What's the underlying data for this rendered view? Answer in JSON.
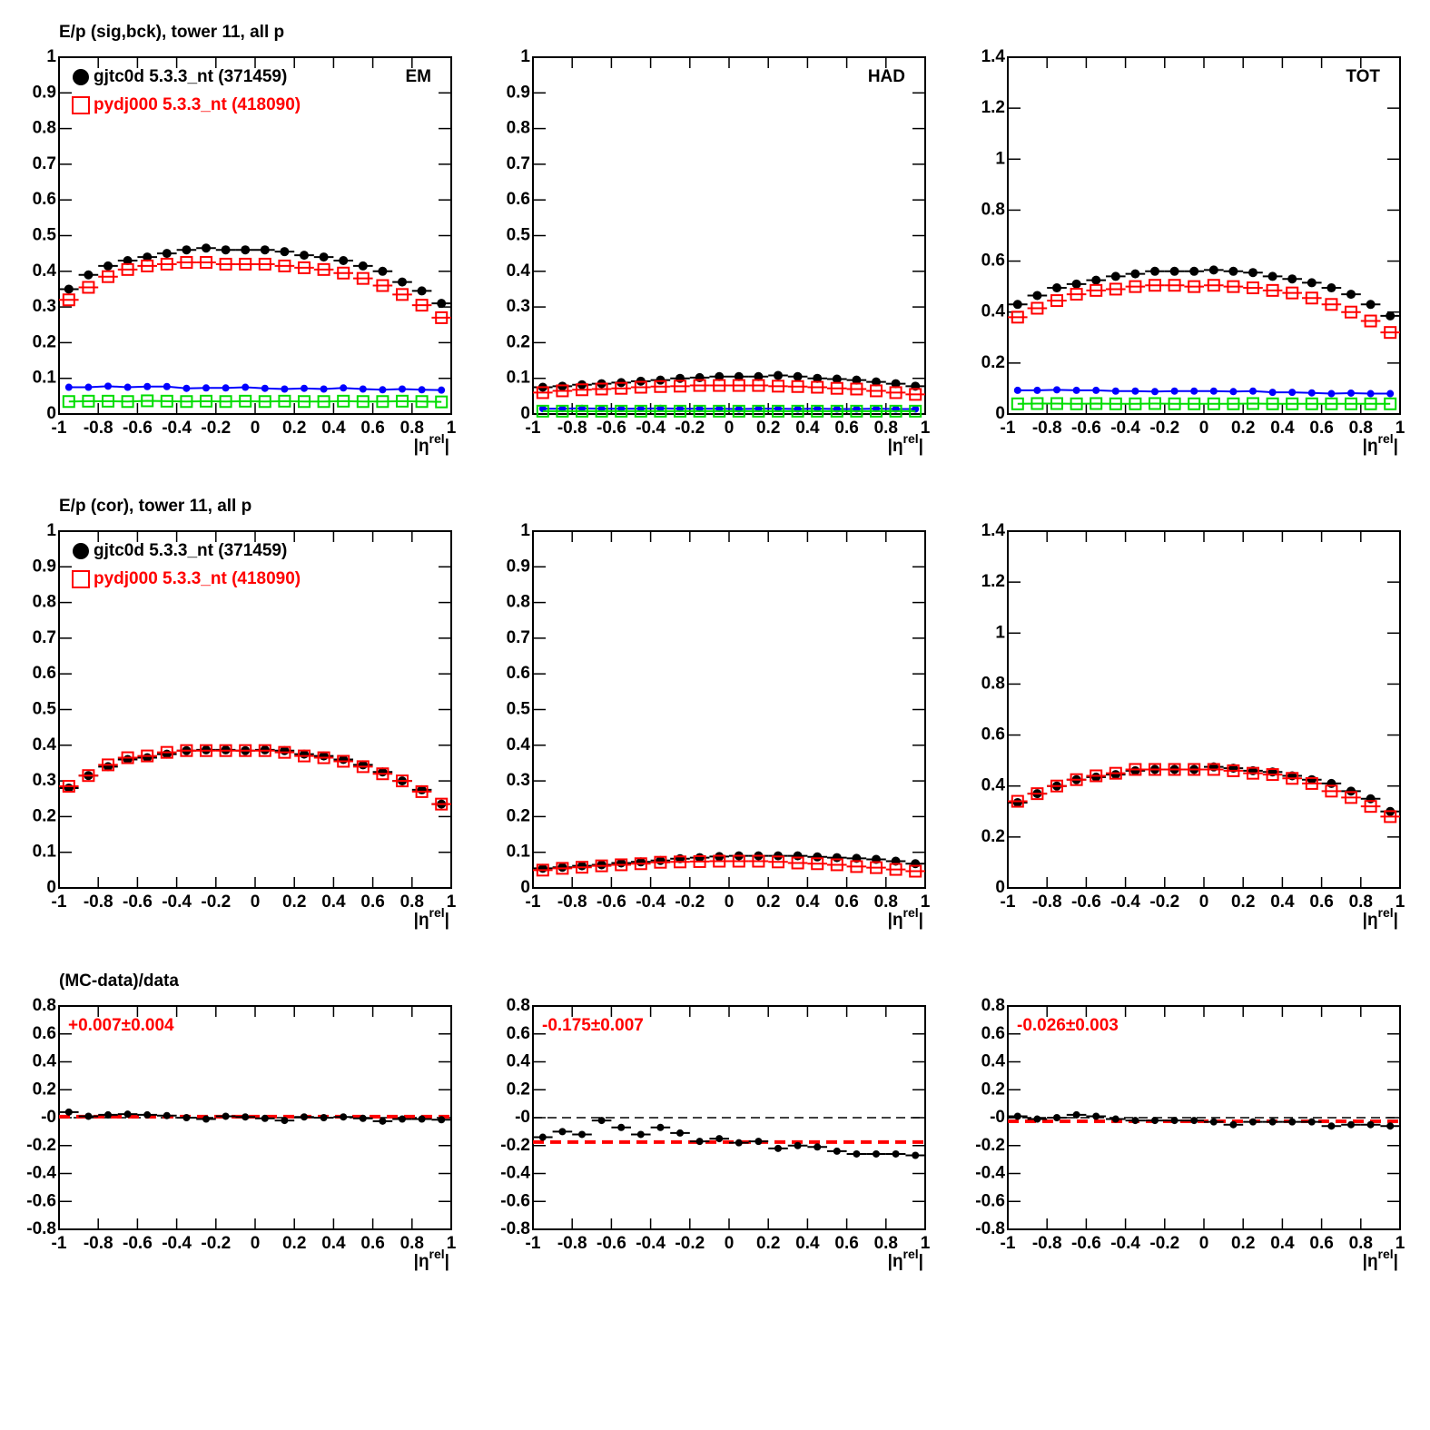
{
  "chart_data": [
    {
      "type": "scatter",
      "title": "E/p (sig,bck), tower 11, all p",
      "corner_label": "EM",
      "x": [
        -0.95,
        -0.85,
        -0.75,
        -0.65,
        -0.55,
        -0.45,
        -0.35,
        -0.25,
        -0.15,
        -0.05,
        0.05,
        0.15,
        0.25,
        0.35,
        0.45,
        0.55,
        0.65,
        0.75,
        0.85,
        0.95
      ],
      "x_label": [
        "|η",
        "rel",
        "|"
      ],
      "xlim": [
        -1,
        1
      ],
      "xticks": [
        -1,
        -0.8,
        -0.6,
        -0.4,
        -0.2,
        0,
        0.2,
        0.4,
        0.6,
        0.8,
        1
      ],
      "ylim": [
        0,
        1
      ],
      "yticks": [
        0,
        0.1,
        0.2,
        0.3,
        0.4,
        0.5,
        0.6,
        0.7,
        0.8,
        0.9,
        1
      ],
      "series": [
        {
          "name": "gjtc0d 5.3.3_nt (371459)",
          "color": "#000000",
          "marker": "circle",
          "line": false,
          "values": [
            0.35,
            0.39,
            0.415,
            0.43,
            0.44,
            0.45,
            0.46,
            0.465,
            0.46,
            0.46,
            0.46,
            0.455,
            0.445,
            0.44,
            0.43,
            0.415,
            0.4,
            0.37,
            0.345,
            0.31
          ]
        },
        {
          "name": "pydj000 5.3.3_nt (418090)",
          "color": "#ff0000",
          "marker": "open-square",
          "line": false,
          "values": [
            0.32,
            0.355,
            0.385,
            0.405,
            0.415,
            0.42,
            0.425,
            0.425,
            0.42,
            0.42,
            0.42,
            0.415,
            0.41,
            0.405,
            0.395,
            0.38,
            0.36,
            0.335,
            0.305,
            0.27
          ]
        },
        {
          "color": "#0000ff",
          "marker": "small-circle",
          "line": true,
          "values": [
            0.075,
            0.075,
            0.078,
            0.075,
            0.077,
            0.077,
            0.072,
            0.073,
            0.073,
            0.075,
            0.072,
            0.07,
            0.072,
            0.07,
            0.073,
            0.07,
            0.068,
            0.07,
            0.068,
            0.067
          ]
        },
        {
          "color": "#00dd00",
          "marker": "open-square",
          "line": true,
          "values": [
            0.035,
            0.036,
            0.036,
            0.035,
            0.037,
            0.036,
            0.035,
            0.036,
            0.035,
            0.036,
            0.035,
            0.036,
            0.035,
            0.035,
            0.036,
            0.035,
            0.035,
            0.036,
            0.035,
            0.034
          ]
        }
      ]
    },
    {
      "type": "scatter",
      "corner_label": "HAD",
      "x": [
        -0.95,
        -0.85,
        -0.75,
        -0.65,
        -0.55,
        -0.45,
        -0.35,
        -0.25,
        -0.15,
        -0.05,
        0.05,
        0.15,
        0.25,
        0.35,
        0.45,
        0.55,
        0.65,
        0.75,
        0.85,
        0.95
      ],
      "x_label": [
        "|η",
        "rel",
        "|"
      ],
      "xlim": [
        -1,
        1
      ],
      "xticks": [
        -1,
        -0.8,
        -0.6,
        -0.4,
        -0.2,
        0,
        0.2,
        0.4,
        0.6,
        0.8,
        1
      ],
      "ylim": [
        0,
        1
      ],
      "yticks": [
        0,
        0.1,
        0.2,
        0.3,
        0.4,
        0.5,
        0.6,
        0.7,
        0.8,
        0.9,
        1
      ],
      "series": [
        {
          "color": "#000000",
          "marker": "circle",
          "line": false,
          "values": [
            0.075,
            0.078,
            0.082,
            0.085,
            0.088,
            0.092,
            0.095,
            0.1,
            0.102,
            0.105,
            0.105,
            0.105,
            0.108,
            0.105,
            0.1,
            0.098,
            0.095,
            0.09,
            0.085,
            0.078
          ]
        },
        {
          "color": "#ff0000",
          "marker": "open-square",
          "line": false,
          "values": [
            0.06,
            0.065,
            0.068,
            0.07,
            0.072,
            0.075,
            0.077,
            0.078,
            0.08,
            0.08,
            0.08,
            0.08,
            0.078,
            0.077,
            0.075,
            0.072,
            0.07,
            0.065,
            0.06,
            0.055
          ]
        },
        {
          "color": "#0000ff",
          "marker": "small-circle",
          "line": true,
          "values": [
            0.015,
            0.015,
            0.016,
            0.015,
            0.015,
            0.015,
            0.016,
            0.015,
            0.015,
            0.015,
            0.014,
            0.015,
            0.015,
            0.014,
            0.015,
            0.014,
            0.014,
            0.015,
            0.014,
            0.014
          ]
        },
        {
          "color": "#00dd00",
          "marker": "open-square",
          "line": true,
          "values": [
            0.008,
            0.008,
            0.008,
            0.008,
            0.008,
            0.008,
            0.008,
            0.008,
            0.008,
            0.008,
            0.008,
            0.008,
            0.008,
            0.008,
            0.008,
            0.008,
            0.008,
            0.008,
            0.008,
            0.008
          ]
        }
      ]
    },
    {
      "type": "scatter",
      "corner_label": "TOT",
      "x": [
        -0.95,
        -0.85,
        -0.75,
        -0.65,
        -0.55,
        -0.45,
        -0.35,
        -0.25,
        -0.15,
        -0.05,
        0.05,
        0.15,
        0.25,
        0.35,
        0.45,
        0.55,
        0.65,
        0.75,
        0.85,
        0.95
      ],
      "x_label": [
        "|η",
        "rel",
        "|"
      ],
      "xlim": [
        -1,
        1
      ],
      "xticks": [
        -1,
        -0.8,
        -0.6,
        -0.4,
        -0.2,
        0,
        0.2,
        0.4,
        0.6,
        0.8,
        1
      ],
      "ylim": [
        0,
        1.4
      ],
      "yticks": [
        0,
        0.2,
        0.4,
        0.6,
        0.8,
        1,
        1.2,
        1.4
      ],
      "series": [
        {
          "color": "#000000",
          "marker": "circle",
          "line": false,
          "values": [
            0.43,
            0.465,
            0.495,
            0.51,
            0.525,
            0.54,
            0.55,
            0.56,
            0.56,
            0.56,
            0.565,
            0.56,
            0.555,
            0.54,
            0.53,
            0.515,
            0.495,
            0.47,
            0.43,
            0.385
          ]
        },
        {
          "color": "#ff0000",
          "marker": "open-square",
          "line": false,
          "values": [
            0.38,
            0.415,
            0.445,
            0.47,
            0.485,
            0.49,
            0.5,
            0.505,
            0.505,
            0.5,
            0.505,
            0.5,
            0.495,
            0.485,
            0.475,
            0.455,
            0.43,
            0.4,
            0.365,
            0.32
          ]
        },
        {
          "color": "#0000ff",
          "marker": "small-circle",
          "line": true,
          "values": [
            0.093,
            0.093,
            0.095,
            0.093,
            0.093,
            0.09,
            0.09,
            0.088,
            0.09,
            0.09,
            0.09,
            0.088,
            0.09,
            0.085,
            0.085,
            0.083,
            0.08,
            0.082,
            0.08,
            0.08
          ]
        },
        {
          "color": "#00dd00",
          "marker": "open-square",
          "line": true,
          "values": [
            0.04,
            0.041,
            0.041,
            0.04,
            0.041,
            0.04,
            0.04,
            0.041,
            0.04,
            0.04,
            0.04,
            0.04,
            0.041,
            0.04,
            0.04,
            0.04,
            0.04,
            0.04,
            0.04,
            0.04
          ]
        }
      ]
    },
    {
      "type": "scatter",
      "title": "E/p (cor), tower 11, all p",
      "x": [
        -0.95,
        -0.85,
        -0.75,
        -0.65,
        -0.55,
        -0.45,
        -0.35,
        -0.25,
        -0.15,
        -0.05,
        0.05,
        0.15,
        0.25,
        0.35,
        0.45,
        0.55,
        0.65,
        0.75,
        0.85,
        0.95
      ],
      "x_label": [
        "|η",
        "rel",
        "|"
      ],
      "xlim": [
        -1,
        1
      ],
      "xticks": [
        -1,
        -0.8,
        -0.6,
        -0.4,
        -0.2,
        0,
        0.2,
        0.4,
        0.6,
        0.8,
        1
      ],
      "ylim": [
        0,
        1
      ],
      "yticks": [
        0,
        0.1,
        0.2,
        0.3,
        0.4,
        0.5,
        0.6,
        0.7,
        0.8,
        0.9,
        1
      ],
      "series": [
        {
          "name": "gjtc0d 5.3.3_nt (371459)",
          "color": "#000000",
          "marker": "circle",
          "line": false,
          "values": [
            0.28,
            0.315,
            0.34,
            0.36,
            0.365,
            0.375,
            0.385,
            0.387,
            0.387,
            0.385,
            0.387,
            0.385,
            0.375,
            0.37,
            0.36,
            0.345,
            0.325,
            0.3,
            0.275,
            0.235
          ]
        },
        {
          "name": "pydj000 5.3.3_nt (418090)",
          "color": "#ff0000",
          "marker": "open-square",
          "line": false,
          "values": [
            0.285,
            0.315,
            0.345,
            0.365,
            0.37,
            0.38,
            0.385,
            0.385,
            0.385,
            0.385,
            0.385,
            0.38,
            0.37,
            0.365,
            0.355,
            0.34,
            0.32,
            0.3,
            0.27,
            0.235
          ]
        }
      ]
    },
    {
      "type": "scatter",
      "x": [
        -0.95,
        -0.85,
        -0.75,
        -0.65,
        -0.55,
        -0.45,
        -0.35,
        -0.25,
        -0.15,
        -0.05,
        0.05,
        0.15,
        0.25,
        0.35,
        0.45,
        0.55,
        0.65,
        0.75,
        0.85,
        0.95
      ],
      "x_label": [
        "|η",
        "rel",
        "|"
      ],
      "xlim": [
        -1,
        1
      ],
      "xticks": [
        -1,
        -0.8,
        -0.6,
        -0.4,
        -0.2,
        0,
        0.2,
        0.4,
        0.6,
        0.8,
        1
      ],
      "ylim": [
        0,
        1
      ],
      "yticks": [
        0,
        0.1,
        0.2,
        0.3,
        0.4,
        0.5,
        0.6,
        0.7,
        0.8,
        0.9,
        1
      ],
      "series": [
        {
          "color": "#000000",
          "marker": "circle",
          "line": false,
          "values": [
            0.055,
            0.058,
            0.062,
            0.065,
            0.07,
            0.073,
            0.077,
            0.082,
            0.085,
            0.088,
            0.09,
            0.09,
            0.09,
            0.09,
            0.087,
            0.085,
            0.083,
            0.08,
            0.075,
            0.068
          ]
        },
        {
          "color": "#ff0000",
          "marker": "open-square",
          "line": false,
          "values": [
            0.05,
            0.055,
            0.058,
            0.062,
            0.065,
            0.068,
            0.072,
            0.073,
            0.074,
            0.075,
            0.075,
            0.075,
            0.073,
            0.07,
            0.068,
            0.065,
            0.06,
            0.057,
            0.052,
            0.047
          ]
        }
      ]
    },
    {
      "type": "scatter",
      "x": [
        -0.95,
        -0.85,
        -0.75,
        -0.65,
        -0.55,
        -0.45,
        -0.35,
        -0.25,
        -0.15,
        -0.05,
        0.05,
        0.15,
        0.25,
        0.35,
        0.45,
        0.55,
        0.65,
        0.75,
        0.85,
        0.95
      ],
      "x_label": [
        "|η",
        "rel",
        "|"
      ],
      "xlim": [
        -1,
        1
      ],
      "xticks": [
        -1,
        -0.8,
        -0.6,
        -0.4,
        -0.2,
        0,
        0.2,
        0.4,
        0.6,
        0.8,
        1
      ],
      "ylim": [
        0,
        1.4
      ],
      "yticks": [
        0,
        0.2,
        0.4,
        0.6,
        0.8,
        1,
        1.2,
        1.4
      ],
      "series": [
        {
          "color": "#000000",
          "marker": "circle",
          "line": false,
          "values": [
            0.335,
            0.37,
            0.4,
            0.425,
            0.435,
            0.445,
            0.46,
            0.465,
            0.465,
            0.465,
            0.475,
            0.47,
            0.46,
            0.455,
            0.44,
            0.425,
            0.41,
            0.38,
            0.35,
            0.3
          ]
        },
        {
          "color": "#ff0000",
          "marker": "open-square",
          "line": false,
          "values": [
            0.34,
            0.37,
            0.4,
            0.425,
            0.44,
            0.45,
            0.465,
            0.465,
            0.465,
            0.465,
            0.465,
            0.46,
            0.45,
            0.445,
            0.43,
            0.41,
            0.38,
            0.355,
            0.32,
            0.28
          ]
        }
      ]
    },
    {
      "type": "scatter",
      "title": "(MC-data)/data",
      "annotation": "+0.007±0.004",
      "fit_line": 0.007,
      "fit_color": "#ff0000",
      "x": [
        -0.95,
        -0.85,
        -0.75,
        -0.65,
        -0.55,
        -0.45,
        -0.35,
        -0.25,
        -0.15,
        -0.05,
        0.05,
        0.15,
        0.25,
        0.35,
        0.45,
        0.55,
        0.65,
        0.75,
        0.85,
        0.95
      ],
      "x_label": [
        "|η",
        "rel",
        "|"
      ],
      "xlim": [
        -1,
        1
      ],
      "xticks": [
        -1,
        -0.8,
        -0.6,
        -0.4,
        -0.2,
        0,
        0.2,
        0.4,
        0.6,
        0.8,
        1
      ],
      "ylim": [
        -0.8,
        0.8
      ],
      "yticks": [
        -0.8,
        -0.6,
        -0.4,
        -0.2,
        {
          "value": 0,
          "label": "-0"
        },
        0.2,
        0.4,
        0.6,
        0.8
      ],
      "series": [
        {
          "color": "#000000",
          "marker": "small-circle",
          "line": false,
          "values": [
            0.04,
            0.01,
            0.02,
            0.025,
            0.02,
            0.015,
            0,
            -0.01,
            0.01,
            0.005,
            -0.005,
            -0.02,
            0.005,
            0,
            0.005,
            -0.005,
            -0.025,
            -0.01,
            -0.01,
            -0.015
          ]
        }
      ]
    },
    {
      "type": "scatter",
      "annotation": "-0.175±0.007",
      "fit_line": -0.175,
      "fit_color": "#ff0000",
      "x": [
        -0.95,
        -0.85,
        -0.75,
        -0.65,
        -0.55,
        -0.45,
        -0.35,
        -0.25,
        -0.15,
        -0.05,
        0.05,
        0.15,
        0.25,
        0.35,
        0.45,
        0.55,
        0.65,
        0.75,
        0.85,
        0.95
      ],
      "x_label": [
        "|η",
        "rel",
        "|"
      ],
      "xlim": [
        -1,
        1
      ],
      "xticks": [
        -1,
        -0.8,
        -0.6,
        -0.4,
        -0.2,
        0,
        0.2,
        0.4,
        0.6,
        0.8,
        1
      ],
      "ylim": [
        -0.8,
        0.8
      ],
      "yticks": [
        -0.8,
        -0.6,
        -0.4,
        -0.2,
        {
          "value": 0,
          "label": "-0"
        },
        0.2,
        0.4,
        0.6,
        0.8
      ],
      "series": [
        {
          "color": "#000000",
          "marker": "small-circle",
          "line": false,
          "values": [
            -0.14,
            -0.1,
            -0.12,
            -0.02,
            -0.07,
            -0.12,
            -0.07,
            -0.11,
            -0.17,
            -0.15,
            -0.18,
            -0.17,
            -0.22,
            -0.2,
            -0.21,
            -0.24,
            -0.26,
            -0.26,
            -0.26,
            -0.27
          ]
        }
      ]
    },
    {
      "type": "scatter",
      "annotation": "-0.026±0.003",
      "fit_line": -0.026,
      "fit_color": "#ff0000",
      "x": [
        -0.95,
        -0.85,
        -0.75,
        -0.65,
        -0.55,
        -0.45,
        -0.35,
        -0.25,
        -0.15,
        -0.05,
        0.05,
        0.15,
        0.25,
        0.35,
        0.45,
        0.55,
        0.65,
        0.75,
        0.85,
        0.95
      ],
      "x_label": [
        "|η",
        "rel",
        "|"
      ],
      "xlim": [
        -1,
        1
      ],
      "xticks": [
        -1,
        -0.8,
        -0.6,
        -0.4,
        -0.2,
        0,
        0.2,
        0.4,
        0.6,
        0.8,
        1
      ],
      "ylim": [
        -0.8,
        0.8
      ],
      "yticks": [
        -0.8,
        -0.6,
        -0.4,
        -0.2,
        {
          "value": 0,
          "label": "-0"
        },
        0.2,
        0.4,
        0.6,
        0.8
      ],
      "series": [
        {
          "color": "#000000",
          "marker": "small-circle",
          "line": false,
          "values": [
            0.01,
            -0.01,
            0,
            0.02,
            0.01,
            -0.01,
            -0.02,
            -0.02,
            -0.02,
            -0.02,
            -0.03,
            -0.05,
            -0.03,
            -0.03,
            -0.03,
            -0.03,
            -0.06,
            -0.05,
            -0.05,
            -0.06
          ]
        }
      ]
    }
  ]
}
